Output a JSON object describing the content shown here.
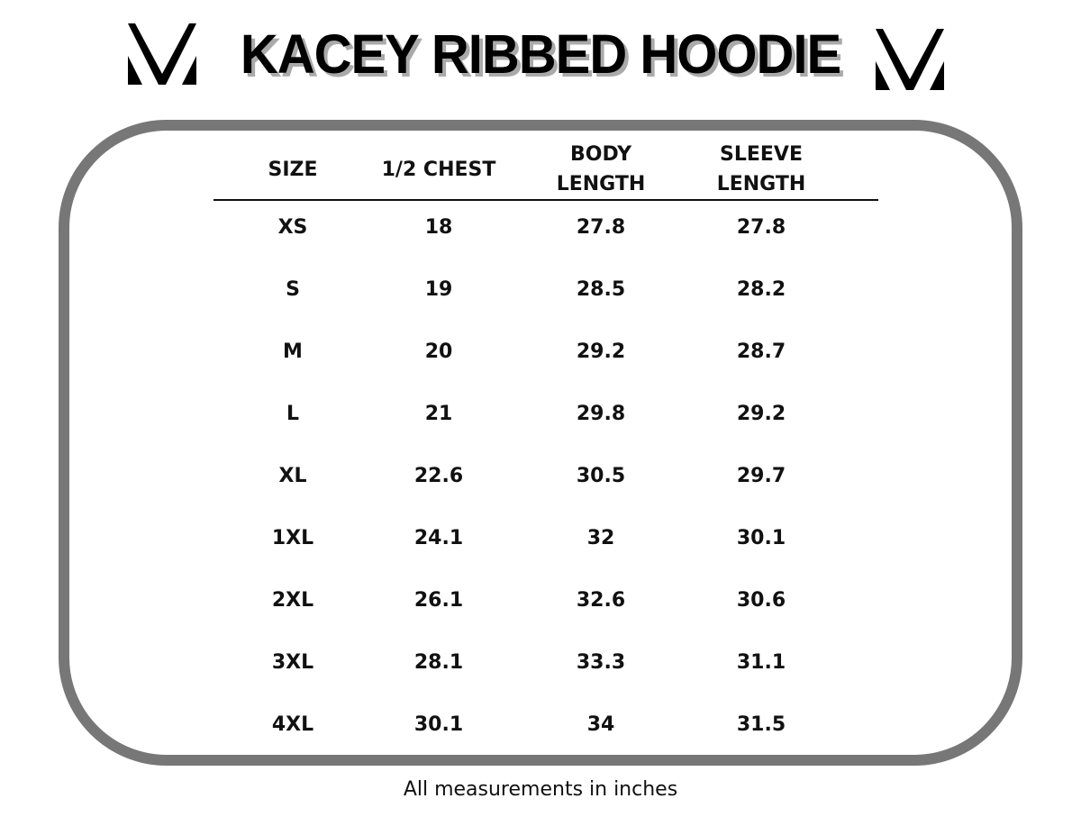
{
  "header": {
    "title": "KACEY RIBBED HOODIE",
    "logo_icon": "v-logo-icon"
  },
  "table": {
    "columns": [
      "SIZE",
      "1/2 CHEST",
      "BODY\nLENGTH",
      "SLEEVE\nLENGTH"
    ],
    "rows": [
      [
        "XS",
        "18",
        "27.8",
        "27.8"
      ],
      [
        "S",
        "19",
        "28.5",
        "28.2"
      ],
      [
        "M",
        "20",
        "29.2",
        "28.7"
      ],
      [
        "L",
        "21",
        "29.8",
        "29.2"
      ],
      [
        "XL",
        "22.6",
        "30.5",
        "29.7"
      ],
      [
        "1XL",
        "24.1",
        "32",
        "30.1"
      ],
      [
        "2XL",
        "26.1",
        "32.6",
        "30.6"
      ],
      [
        "3XL",
        "28.1",
        "33.3",
        "31.1"
      ],
      [
        "4XL",
        "30.1",
        "34",
        "31.5"
      ]
    ]
  },
  "footer": {
    "note": "All measurements in inches"
  },
  "colors": {
    "border": "#777777",
    "text": "#111111",
    "title_shadow": "#aaaaaa"
  }
}
